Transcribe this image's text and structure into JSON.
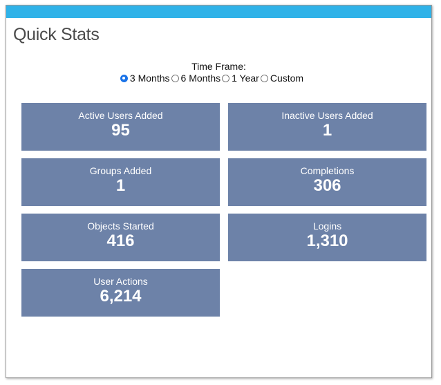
{
  "title": "Quick Stats",
  "colors": {
    "top_bar": "#2fb2e8",
    "tile_background": "#6d82a8",
    "tile_text": "#ffffff",
    "title_text": "#4a4a4a",
    "radio_selected": "#1a73e8"
  },
  "timeframe": {
    "label": "Time Frame:",
    "options": [
      {
        "label": "3 Months",
        "selected": true
      },
      {
        "label": "6 Months",
        "selected": false
      },
      {
        "label": "1 Year",
        "selected": false
      },
      {
        "label": "Custom",
        "selected": false
      }
    ]
  },
  "stats": [
    {
      "label": "Active Users Added",
      "value": "95"
    },
    {
      "label": "Inactive Users Added",
      "value": "1"
    },
    {
      "label": "Groups Added",
      "value": "1"
    },
    {
      "label": "Completions",
      "value": "306"
    },
    {
      "label": "Objects Started",
      "value": "416"
    },
    {
      "label": "Logins",
      "value": "1,310"
    },
    {
      "label": "User Actions",
      "value": "6,214"
    }
  ]
}
